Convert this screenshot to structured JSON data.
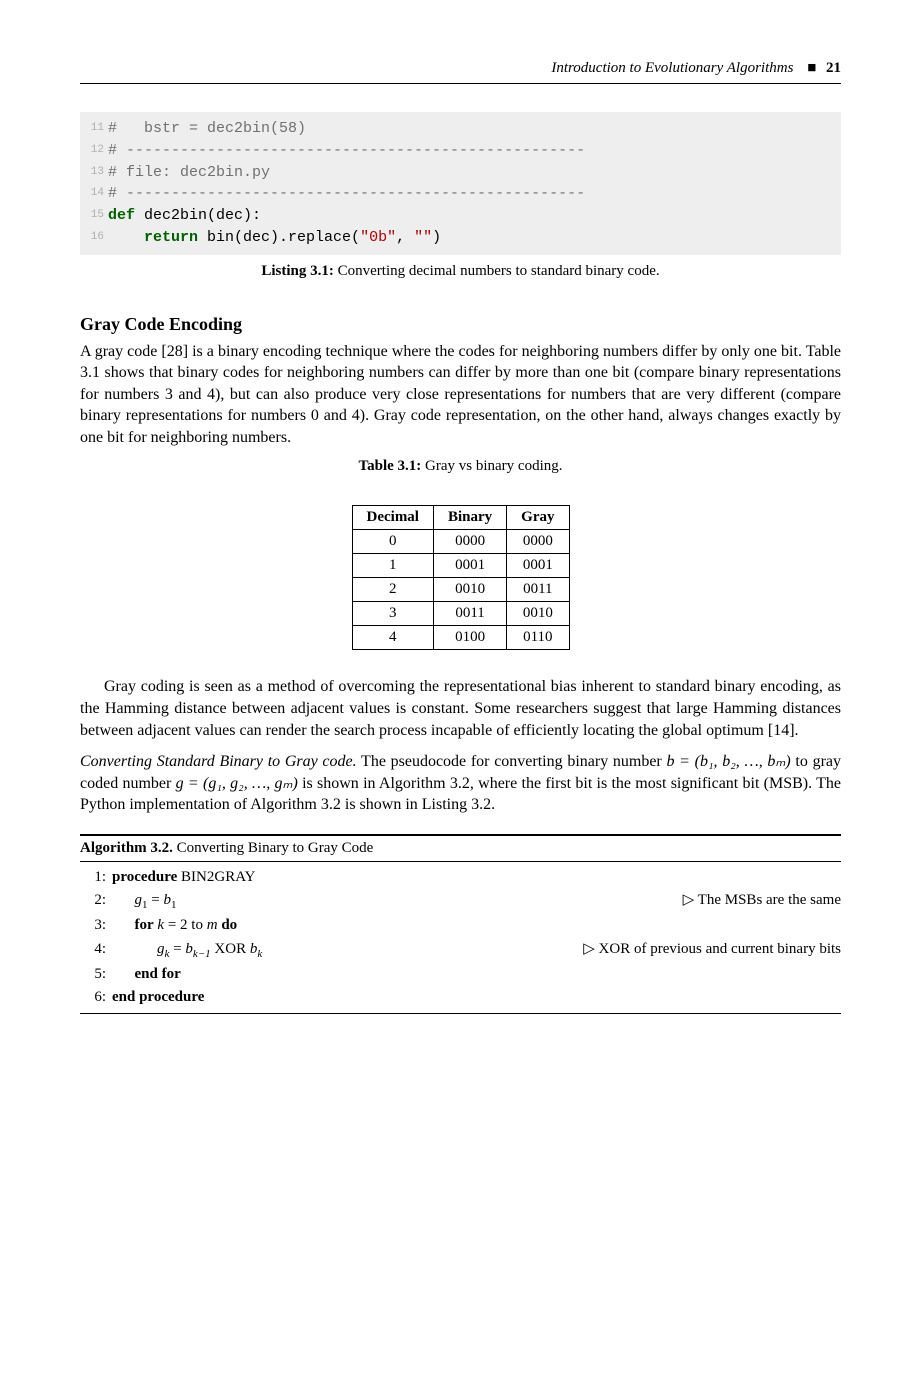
{
  "header": {
    "title": "Introduction to Evolutionary Algorithms",
    "square": "■",
    "page": "21"
  },
  "code": {
    "lines": [
      {
        "n": "11",
        "pre": "",
        "kw": "",
        "mid": "",
        "cm": "#   bstr = dec2bin(58)"
      },
      {
        "n": "12",
        "pre": "",
        "kw": "",
        "mid": "",
        "cm": "# ---------------------------------------------------"
      },
      {
        "n": "13",
        "pre": "",
        "kw": "",
        "mid": "",
        "cm": "# file: dec2bin.py"
      },
      {
        "n": "14",
        "pre": "",
        "kw": "",
        "mid": "",
        "cm": "# ---------------------------------------------------"
      },
      {
        "n": "15",
        "pre": "",
        "kw": "def",
        "mid": " dec2bin(dec):",
        "cm": ""
      },
      {
        "n": "16",
        "pre": "    ",
        "kw": "return",
        "mid": " bin(dec).replace(",
        "str1": "\"0b\"",
        "mid2": ", ",
        "str2": "\"\"",
        "mid3": ")",
        "cm": ""
      }
    ]
  },
  "listing": {
    "label": "Listing 3.1:",
    "text": " Converting decimal numbers to standard binary code."
  },
  "section": {
    "heading": "Gray Code Encoding",
    "para1": "A gray code [28] is a binary encoding technique where the codes for neighboring numbers differ by only one bit. Table 3.1 shows that binary codes for neighboring numbers can differ by more than one bit (compare binary representations for numbers 3 and 4), but can also produce very close representations for numbers that are very different (compare binary representations for numbers 0 and 4). Gray code representation, on the other hand, always changes exactly by one bit for neighboring numbers."
  },
  "table": {
    "caption_label": "Table 3.1:",
    "caption_text": " Gray vs binary coding.",
    "headers": [
      "Decimal",
      "Binary",
      "Gray"
    ],
    "rows": [
      [
        "0",
        "0000",
        "0000"
      ],
      [
        "1",
        "0001",
        "0001"
      ],
      [
        "2",
        "0010",
        "0011"
      ],
      [
        "3",
        "0011",
        "0010"
      ],
      [
        "4",
        "0100",
        "0110"
      ]
    ]
  },
  "para2": "Gray coding is seen as a method of overcoming the representational bias inherent to standard binary encoding, as the Hamming distance between adjacent values is constant. Some researchers suggest that large Hamming distances between adjacent values can render the search process incapable of efficiently locating the global optimum [14].",
  "para3_runin": "Converting Standard Binary to Gray code.",
  "para3_rest_a": " The pseudocode for converting binary number ",
  "para3_b_expr": "b = (b₁, b₂, …, bₘ)",
  "para3_mid": " to gray coded number ",
  "para3_g_expr": "g = (g₁, g₂, …, gₘ)",
  "para3_rest_b": " is shown in Algorithm 3.2, where the first bit is the most significant bit (MSB). The Python implementation of Algorithm 3.2 is shown in Listing 3.2.",
  "algo": {
    "label": "Algorithm 3.2.",
    "title": " Converting Binary to Gray Code",
    "lines": [
      {
        "n": "1:",
        "indent": 0,
        "kw": "procedure",
        "rest_sc": " BIN2GRAY",
        "comment": ""
      },
      {
        "n": "2:",
        "indent": 1,
        "expr_html": "<span class='it'>g</span><span class='sub'>1</span> = <span class='it'>b</span><span class='sub'>1</span>",
        "comment": "▷ The MSBs are the same"
      },
      {
        "n": "3:",
        "indent": 1,
        "kw": "for",
        "rest_html": " <span class='it'>k</span> = 2 to <span class='it'>m</span> <b>do</b>",
        "comment": ""
      },
      {
        "n": "4:",
        "indent": 2,
        "expr_html": "<span class='it'>g</span><span class='sub it'>k</span> = <span class='it'>b</span><span class='sub it'>k−1</span> XOR <span class='it'>b</span><span class='sub it'>k</span>",
        "comment": "▷ XOR of previous and current binary bits"
      },
      {
        "n": "5:",
        "indent": 1,
        "kw": "end for",
        "comment": ""
      },
      {
        "n": "6:",
        "indent": 0,
        "kw": "end procedure",
        "comment": ""
      }
    ]
  }
}
